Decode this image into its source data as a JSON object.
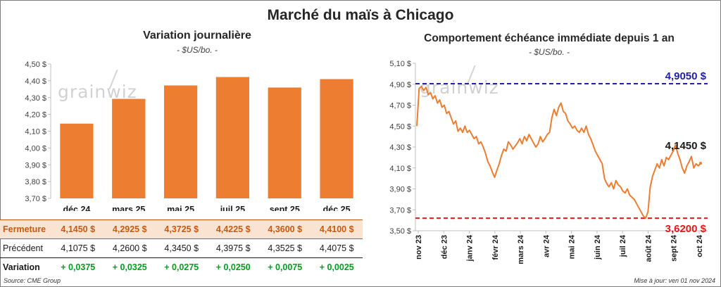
{
  "main_title": "Marché du maïs à Chicago",
  "watermark": "grainwiz",
  "left_panel": {
    "title": "Variation journalière",
    "subtitle": "- $US/bo. -"
  },
  "right_panel": {
    "title": "Comportement échéance immédiate depuis 1 an",
    "subtitle": "- $US/bo. -"
  },
  "table": {
    "rows": [
      {
        "label": "Fermeture",
        "values": [
          "4,1450 $",
          "4,2925 $",
          "4,3725 $",
          "4,4225 $",
          "4,3600 $",
          "4,4100 $"
        ]
      },
      {
        "label": "Précédent",
        "values": [
          "4,1075 $",
          "4,2600 $",
          "4,3450 $",
          "4,3975 $",
          "4,3525 $",
          "4,4075 $"
        ]
      },
      {
        "label": "Variation",
        "values": [
          "+ 0,0375",
          "+ 0,0325",
          "+ 0,0275",
          "+ 0,0250",
          "+ 0,0075",
          "+ 0,0025"
        ]
      }
    ]
  },
  "footer": {
    "source": "Source: CME Group",
    "updated": "Mise à jour: ven 01 nov 2024"
  },
  "colors": {
    "bar": "#ed7d31",
    "line": "#ed7d31",
    "high_line": "#1f1fa8",
    "low_line": "#e31a1c",
    "gain": "#00a01e"
  },
  "chart_data": [
    {
      "type": "bar",
      "title": "Variation journalière",
      "subtitle": "- $US/bo. -",
      "categories": [
        "déc 24",
        "mars 25",
        "mai 25",
        "juil 25",
        "sept 25",
        "déc 25"
      ],
      "values": [
        4.145,
        4.2925,
        4.3725,
        4.4225,
        4.36,
        4.41
      ],
      "ylim": [
        3.7,
        4.5
      ],
      "yticks": [
        3.7,
        3.8,
        3.9,
        4.0,
        4.1,
        4.2,
        4.3,
        4.4,
        4.5
      ],
      "ytick_labels": [
        "3,70 $",
        "3,80 $",
        "3,90 $",
        "4,00 $",
        "4,10 $",
        "4,20 $",
        "4,30 $",
        "4,40 $",
        "4,50 $"
      ],
      "grid": false
    },
    {
      "type": "line",
      "title": "Comportement échéance immédiate depuis 1 an",
      "subtitle": "- $US/bo. -",
      "x_labels": [
        "nov 23",
        "déc 23",
        "janv 24",
        "févr 24",
        "mars 24",
        "avr 24",
        "mai 24",
        "juin 24",
        "juil 24",
        "août 24",
        "sept 24",
        "oct 24"
      ],
      "ylim": [
        3.5,
        5.1
      ],
      "yticks": [
        3.5,
        3.7,
        3.9,
        4.1,
        4.3,
        4.5,
        4.7,
        4.9,
        5.1
      ],
      "ytick_labels": [
        "3,50 $",
        "3,70 $",
        "3,90 $",
        "4,10 $",
        "4,30 $",
        "4,50 $",
        "4,70 $",
        "4,90 $",
        "5,10 $"
      ],
      "high": {
        "value": 4.905,
        "label": "4,9050 $"
      },
      "low": {
        "value": 3.62,
        "label": "3,6200 $"
      },
      "last": {
        "value": 4.145,
        "label": "4,1450 $"
      },
      "values": [
        4.5,
        4.86,
        4.88,
        4.84,
        4.87,
        4.8,
        4.82,
        4.76,
        4.79,
        4.72,
        4.75,
        4.68,
        4.7,
        4.62,
        4.64,
        4.58,
        4.52,
        4.55,
        4.45,
        4.48,
        4.44,
        4.5,
        4.44,
        4.46,
        4.42,
        4.38,
        4.4,
        4.33,
        4.35,
        4.3,
        4.24,
        4.16,
        4.12,
        4.06,
        4.01,
        4.08,
        4.14,
        4.22,
        4.28,
        4.26,
        4.35,
        4.32,
        4.28,
        4.31,
        4.34,
        4.38,
        4.33,
        4.4,
        4.36,
        4.42,
        4.38,
        4.34,
        4.3,
        4.33,
        4.4,
        4.35,
        4.38,
        4.42,
        4.44,
        4.58,
        4.66,
        4.6,
        4.68,
        4.72,
        4.64,
        4.62,
        4.55,
        4.52,
        4.48,
        4.5,
        4.46,
        4.44,
        4.48,
        4.44,
        4.5,
        4.42,
        4.38,
        4.32,
        4.26,
        4.22,
        4.18,
        4.14,
        4.0,
        3.95,
        3.92,
        3.96,
        3.9,
        3.98,
        3.94,
        3.92,
        3.88,
        3.86,
        3.9,
        3.84,
        3.82,
        3.8,
        3.76,
        3.72,
        3.68,
        3.64,
        3.62,
        3.68,
        3.92,
        4.02,
        4.08,
        4.14,
        4.1,
        4.18,
        4.12,
        4.2,
        4.18,
        4.22,
        4.26,
        4.32,
        4.24,
        4.18,
        4.1,
        4.05,
        4.12,
        4.16,
        4.21,
        4.1,
        4.14,
        4.12,
        4.145
      ]
    }
  ]
}
